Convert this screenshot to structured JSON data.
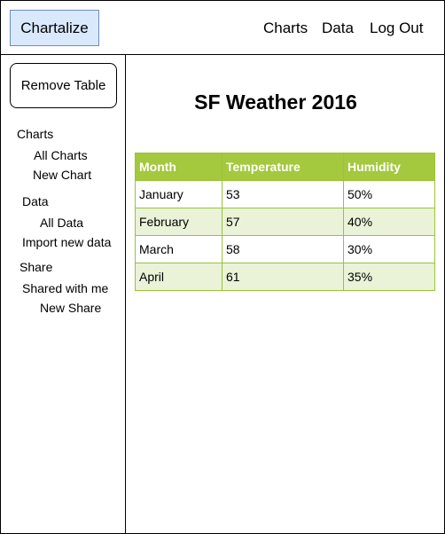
{
  "header": {
    "brand": "Chartalize",
    "nav": [
      "Charts",
      "Data",
      "Log Out"
    ]
  },
  "sidebar": {
    "remove_button": "Remove Table",
    "items": [
      {
        "label": "Charts"
      },
      {
        "label": "All Charts"
      },
      {
        "label": "New Chart"
      },
      {
        "label": "Data"
      },
      {
        "label": "All Data"
      },
      {
        "label": "Import new data"
      },
      {
        "label": "Share"
      },
      {
        "label": "Shared with me"
      },
      {
        "label": "New Share"
      }
    ]
  },
  "main": {
    "title": "SF Weather 2016",
    "table": {
      "headers": [
        "Month",
        "Temperature",
        "Humidity"
      ],
      "rows": [
        [
          "January",
          "53",
          "50%"
        ],
        [
          "February",
          "57",
          "40%"
        ],
        [
          "March",
          "58",
          "30%"
        ],
        [
          "April",
          "61",
          "35%"
        ]
      ]
    }
  },
  "colors": {
    "brand_fill": "#dae8fc",
    "brand_border": "#6c8ebf",
    "table_header": "#a4c83e",
    "table_stripe": "#eaf2d8",
    "table_border": "#9ac33a"
  }
}
